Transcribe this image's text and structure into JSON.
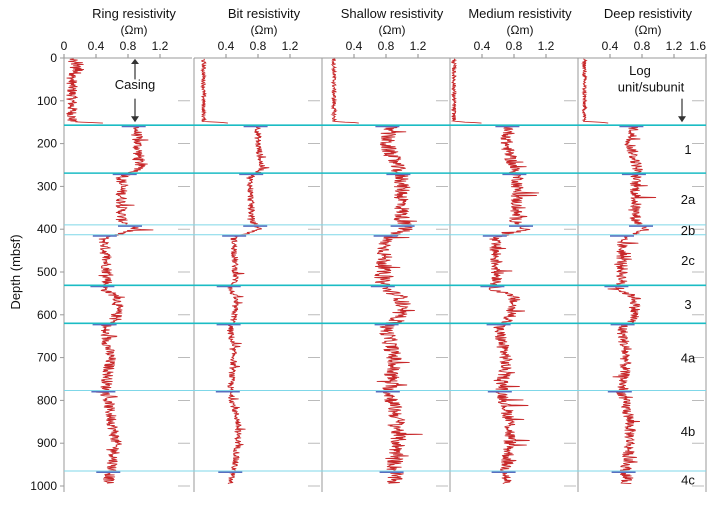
{
  "chart_data": {
    "type": "line",
    "ylabel": "Depth (mbsf)",
    "y_range": [
      0,
      1000
    ],
    "y_ticks": [
      0,
      100,
      200,
      300,
      400,
      500,
      600,
      700,
      800,
      900,
      1000
    ],
    "panels": [
      {
        "title": "Ring resistivity",
        "unit": "(Ωm)",
        "x_range": [
          0,
          1.6
        ],
        "x_ticks": [
          0,
          0.4,
          0.8,
          1.2
        ],
        "casing_mean": 0.1,
        "profile": [
          [
            160,
            0.9
          ],
          [
            200,
            0.92
          ],
          [
            260,
            0.95
          ],
          [
            280,
            0.72
          ],
          [
            380,
            0.72
          ],
          [
            400,
            0.9
          ],
          [
            420,
            0.5
          ],
          [
            520,
            0.55
          ],
          [
            540,
            0.5
          ],
          [
            560,
            0.68
          ],
          [
            610,
            0.65
          ],
          [
            630,
            0.5
          ],
          [
            700,
            0.58
          ],
          [
            780,
            0.52
          ],
          [
            850,
            0.6
          ],
          [
            900,
            0.65
          ],
          [
            960,
            0.6
          ],
          [
            990,
            0.55
          ]
        ],
        "noise": 0.07
      },
      {
        "title": "Bit resistivity",
        "unit": "(Ωm)",
        "x_range": [
          0,
          1.6
        ],
        "x_ticks": [
          0.4,
          0.8,
          1.2
        ],
        "casing_mean": 0.12,
        "profile": [
          [
            160,
            0.8
          ],
          [
            200,
            0.8
          ],
          [
            260,
            0.85
          ],
          [
            280,
            0.7
          ],
          [
            380,
            0.72
          ],
          [
            400,
            0.82
          ],
          [
            420,
            0.5
          ],
          [
            520,
            0.52
          ],
          [
            540,
            0.45
          ],
          [
            560,
            0.52
          ],
          [
            610,
            0.5
          ],
          [
            630,
            0.45
          ],
          [
            700,
            0.5
          ],
          [
            780,
            0.45
          ],
          [
            850,
            0.55
          ],
          [
            900,
            0.55
          ],
          [
            960,
            0.5
          ],
          [
            990,
            0.45
          ]
        ],
        "noise": 0.04
      },
      {
        "title": "Shallow resistivity",
        "unit": "(Ωm)",
        "x_range": [
          0,
          1.6
        ],
        "x_ticks": [
          0.4,
          0.8,
          1.2
        ],
        "casing_mean": 0.15,
        "profile": [
          [
            160,
            0.85
          ],
          [
            200,
            0.8
          ],
          [
            260,
            0.95
          ],
          [
            280,
            1.0
          ],
          [
            380,
            1.0
          ],
          [
            400,
            1.05
          ],
          [
            420,
            0.8
          ],
          [
            520,
            0.75
          ],
          [
            540,
            0.8
          ],
          [
            560,
            1.0
          ],
          [
            610,
            0.95
          ],
          [
            630,
            0.8
          ],
          [
            700,
            0.9
          ],
          [
            780,
            0.85
          ],
          [
            850,
            0.95
          ],
          [
            900,
            0.95
          ],
          [
            960,
            0.9
          ],
          [
            990,
            0.9
          ]
        ],
        "noise": 0.1
      },
      {
        "title": "Medium resistivity",
        "unit": "(Ωm)",
        "x_range": [
          0,
          1.6
        ],
        "x_ticks": [
          0.4,
          0.8,
          1.2
        ],
        "casing_mean": 0.05,
        "profile": [
          [
            160,
            0.75
          ],
          [
            200,
            0.7
          ],
          [
            260,
            0.8
          ],
          [
            280,
            0.85
          ],
          [
            380,
            0.82
          ],
          [
            400,
            0.95
          ],
          [
            420,
            0.55
          ],
          [
            520,
            0.6
          ],
          [
            540,
            0.55
          ],
          [
            560,
            0.8
          ],
          [
            610,
            0.75
          ],
          [
            630,
            0.6
          ],
          [
            700,
            0.7
          ],
          [
            780,
            0.65
          ],
          [
            850,
            0.75
          ],
          [
            900,
            0.75
          ],
          [
            960,
            0.7
          ],
          [
            990,
            0.7
          ]
        ],
        "noise": 0.08
      },
      {
        "title": "Deep resistivity",
        "unit": "(Ωm)",
        "x_range": [
          0,
          1.6
        ],
        "x_ticks": [
          0.4,
          0.8,
          1.2,
          1.6
        ],
        "casing_mean": 0.08,
        "profile": [
          [
            160,
            0.7
          ],
          [
            200,
            0.65
          ],
          [
            260,
            0.75
          ],
          [
            280,
            0.72
          ],
          [
            380,
            0.72
          ],
          [
            400,
            0.85
          ],
          [
            420,
            0.55
          ],
          [
            520,
            0.55
          ],
          [
            540,
            0.5
          ],
          [
            560,
            0.72
          ],
          [
            610,
            0.7
          ],
          [
            630,
            0.55
          ],
          [
            700,
            0.6
          ],
          [
            780,
            0.55
          ],
          [
            850,
            0.65
          ],
          [
            900,
            0.65
          ],
          [
            960,
            0.6
          ],
          [
            990,
            0.6
          ]
        ],
        "noise": 0.07
      }
    ],
    "boundaries": [
      {
        "depth": 157,
        "weight": "heavy"
      },
      {
        "depth": 269,
        "weight": "heavy"
      },
      {
        "depth": 390,
        "weight": "light"
      },
      {
        "depth": 413,
        "weight": "light"
      },
      {
        "depth": 531,
        "weight": "heavy"
      },
      {
        "depth": 620,
        "weight": "heavy"
      },
      {
        "depth": 777,
        "weight": "light"
      },
      {
        "depth": 965,
        "weight": "light"
      }
    ],
    "units": [
      {
        "label": "1",
        "depth": 213
      },
      {
        "label": "2a",
        "depth": 330
      },
      {
        "label": "2b",
        "depth": 402
      },
      {
        "label": "2c",
        "depth": 472
      },
      {
        "label": "3",
        "depth": 575
      },
      {
        "label": "4a",
        "depth": 700
      },
      {
        "label": "4b",
        "depth": 871
      },
      {
        "label": "4c",
        "depth": 985
      }
    ],
    "annotations": {
      "casing": "Casing",
      "log_unit_line1": "Log",
      "log_unit_line2": "unit/subunit"
    },
    "colors": {
      "curve": "#c8282a",
      "curve_light": "#e27a6e",
      "boundary": "#1bbcc4",
      "boundary_light": "#7fd7e8",
      "marker": "#5a6fc0",
      "frame": "#9a9a9a",
      "grid_tick": "#888888"
    }
  }
}
